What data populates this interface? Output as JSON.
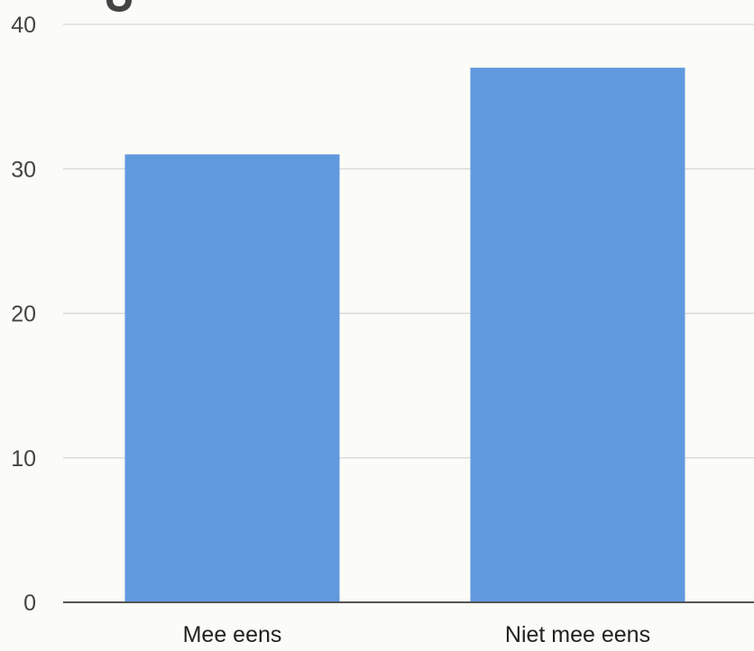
{
  "chart_data": {
    "type": "bar",
    "categories": [
      "Mee eens",
      "Niet mee eens"
    ],
    "values": [
      31,
      37
    ],
    "ylim": [
      0,
      40
    ],
    "yticks": [
      0,
      10,
      20,
      30,
      40
    ],
    "grid": true,
    "legend": "none"
  },
  "colors": {
    "bar": "#6199df",
    "grid": "#d6d6d6",
    "axis": "#555555",
    "background": "#fbfbf7"
  }
}
